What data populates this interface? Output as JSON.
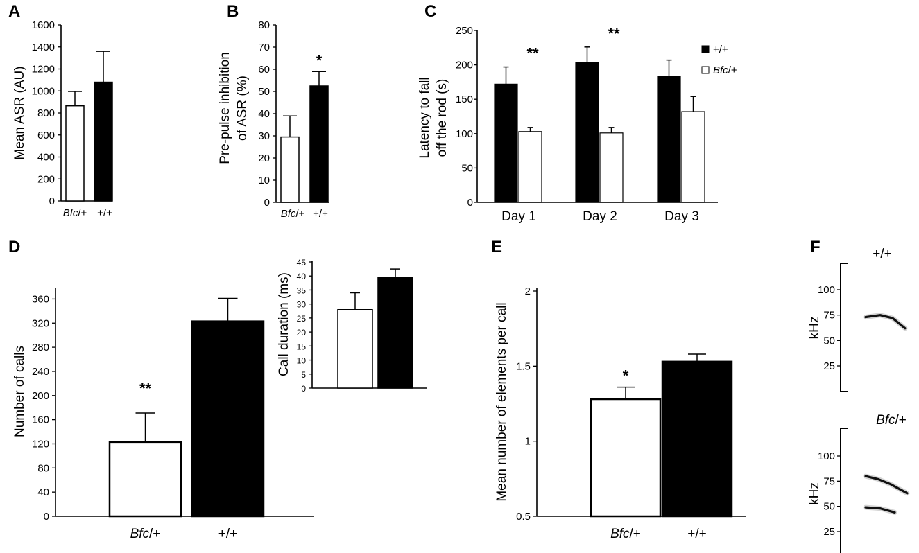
{
  "chart_data": [
    {
      "id": "A",
      "type": "bar",
      "panel_label": "A",
      "ylabel": "Mean ASR (AU)",
      "ylim": [
        0,
        1600
      ],
      "yticks": [
        0,
        200,
        400,
        600,
        800,
        1000,
        1200,
        1400,
        1600
      ],
      "categories": [
        {
          "italic": "Bfc",
          "rest": "/+"
        },
        {
          "italic": "",
          "rest": "+/+"
        }
      ],
      "values": [
        865,
        1080
      ],
      "errors": [
        130,
        280
      ],
      "fills": [
        "#ffffff",
        "#000000"
      ],
      "significance": [
        "",
        ""
      ]
    },
    {
      "id": "B",
      "type": "bar",
      "panel_label": "B",
      "ylabel_lines": [
        "Pre-pulse inhibition",
        "of ASR (%)"
      ],
      "ylim": [
        0,
        80
      ],
      "yticks": [
        0,
        10,
        20,
        30,
        40,
        50,
        60,
        70,
        80
      ],
      "categories": [
        {
          "italic": "Bfc",
          "rest": "/+"
        },
        {
          "italic": "",
          "rest": "+/+"
        }
      ],
      "values": [
        29.5,
        52.5
      ],
      "errors": [
        9.5,
        6.5
      ],
      "fills": [
        "#ffffff",
        "#000000"
      ],
      "significance": [
        "",
        "*"
      ]
    },
    {
      "id": "C",
      "type": "bar",
      "panel_label": "C",
      "ylabel_lines": [
        "Latency to fall",
        "off the rod (s)"
      ],
      "ylim": [
        0,
        250
      ],
      "yticks": [
        0,
        50,
        100,
        150,
        200,
        250
      ],
      "categories": [
        "Day 1",
        "Day 2",
        "Day 3"
      ],
      "series": [
        {
          "name": "+/+",
          "name_italic": "",
          "name_rest": "+/+",
          "fill": "#000000",
          "values": [
            172,
            204,
            183
          ],
          "errors": [
            25,
            22,
            24
          ]
        },
        {
          "name": "Bfc/+",
          "name_italic": "Bfc",
          "name_rest": "/+",
          "fill": "#ffffff",
          "values": [
            103,
            101,
            132
          ],
          "errors": [
            6,
            8,
            22
          ]
        }
      ],
      "significance": [
        "**",
        "**",
        ""
      ],
      "legend_position": "top-right"
    },
    {
      "id": "D",
      "type": "bar",
      "panel_label": "D",
      "ylabel": "Number of calls",
      "ylim": [
        0,
        380
      ],
      "yticks": [
        0,
        40,
        80,
        120,
        160,
        200,
        240,
        280,
        320,
        360
      ],
      "categories": [
        {
          "italic": "Bfc",
          "rest": "/+"
        },
        {
          "italic": "",
          "rest": "+/+"
        }
      ],
      "values": [
        123,
        323
      ],
      "errors": [
        48,
        38
      ],
      "fills": [
        "#ffffff",
        "#000000"
      ],
      "significance": [
        "**",
        ""
      ]
    },
    {
      "id": "D-inset",
      "type": "bar",
      "ylabel": "Call duration (ms)",
      "ylim": [
        0,
        45
      ],
      "yticks": [
        0,
        5,
        10,
        15,
        20,
        25,
        30,
        35,
        40,
        45
      ],
      "values": [
        28,
        39.5
      ],
      "errors": [
        6,
        3
      ],
      "fills": [
        "#ffffff",
        "#000000"
      ]
    },
    {
      "id": "E",
      "type": "bar",
      "panel_label": "E",
      "ylabel": "Mean number of elements per call",
      "ylim": [
        0.5,
        2
      ],
      "yticks": [
        0.5,
        1,
        1.5,
        2
      ],
      "ytick_labels": [
        "0.5",
        "1",
        "1.5",
        "2"
      ],
      "categories": [
        {
          "italic": "Bfc",
          "rest": "/+"
        },
        {
          "italic": "",
          "rest": "+/+"
        }
      ],
      "values": [
        1.28,
        1.53
      ],
      "errors": [
        0.08,
        0.05
      ],
      "fills": [
        "#ffffff",
        "#000000"
      ],
      "significance": [
        "*",
        ""
      ]
    },
    {
      "id": "F",
      "type": "spectrogram",
      "panel_label": "F",
      "ylabel": "kHz",
      "yticks": [
        25,
        50,
        75,
        100
      ],
      "panels": [
        {
          "title_italic": "",
          "title_rest": "+/+",
          "traces": [
            [
              [
                0.0,
                73
              ],
              [
                0.35,
                75
              ],
              [
                0.65,
                72
              ],
              [
                0.95,
                62
              ]
            ]
          ]
        },
        {
          "title_italic": "Bfc",
          "title_rest": "/+",
          "traces": [
            [
              [
                0.0,
                80
              ],
              [
                0.3,
                77
              ],
              [
                0.6,
                72
              ],
              [
                1.0,
                63
              ]
            ],
            [
              [
                0.0,
                49
              ],
              [
                0.35,
                48
              ],
              [
                0.7,
                44
              ]
            ]
          ]
        }
      ]
    }
  ]
}
